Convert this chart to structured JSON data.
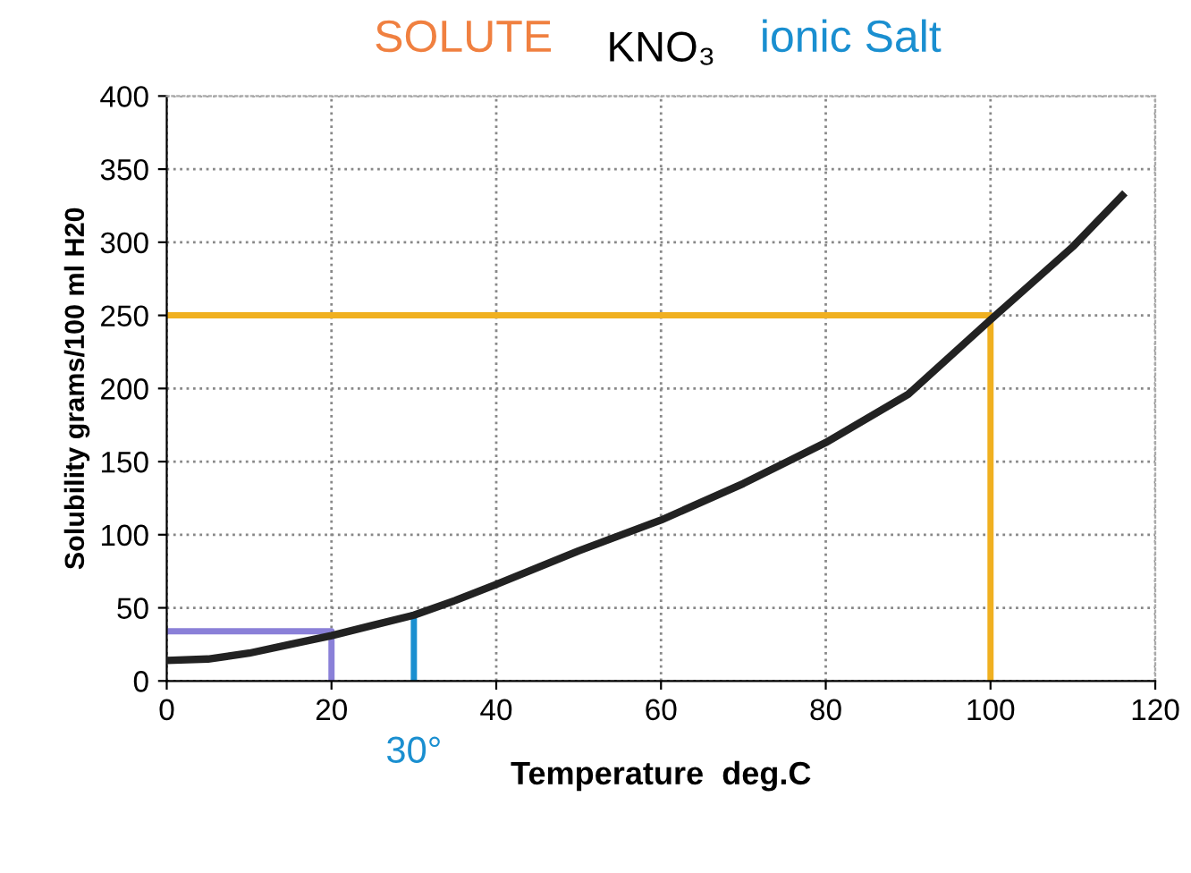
{
  "chart_data": {
    "type": "line",
    "title": "KNO₃",
    "xlabel": "Temperature  deg.C",
    "ylabel": "Solubility grams/100 ml H20",
    "xlim": [
      0,
      120
    ],
    "ylim": [
      0,
      400
    ],
    "xticks": [
      0,
      20,
      40,
      60,
      80,
      100,
      120
    ],
    "yticks": [
      0,
      50,
      100,
      150,
      200,
      250,
      300,
      350,
      400
    ],
    "grid": true,
    "marker": "none",
    "line_style": "solid",
    "series": [
      {
        "color": "#222222",
        "x": [
          0,
          5,
          10,
          15,
          20,
          25,
          30,
          35,
          40,
          50,
          60,
          70,
          80,
          90,
          100,
          110,
          116
        ],
        "values": [
          14,
          15,
          19,
          25,
          31,
          38,
          45,
          55,
          66,
          89,
          110,
          135,
          163,
          196,
          247,
          297,
          332
        ]
      },
      {
        "color": "#f0b020",
        "x": [
          0,
          100,
          100
        ],
        "values": [
          250,
          250,
          0
        ]
      },
      {
        "color": "#8a80d8",
        "x": [
          0,
          20,
          20
        ],
        "values": [
          34,
          34,
          0
        ]
      },
      {
        "color": "#1a8fd0",
        "x": [
          30,
          30
        ],
        "values": [
          0,
          45
        ]
      }
    ],
    "annotations": [
      "SOLUTE",
      "ionic Salt",
      {
        "text": "30°",
        "x": 30,
        "y": 0
      }
    ]
  }
}
